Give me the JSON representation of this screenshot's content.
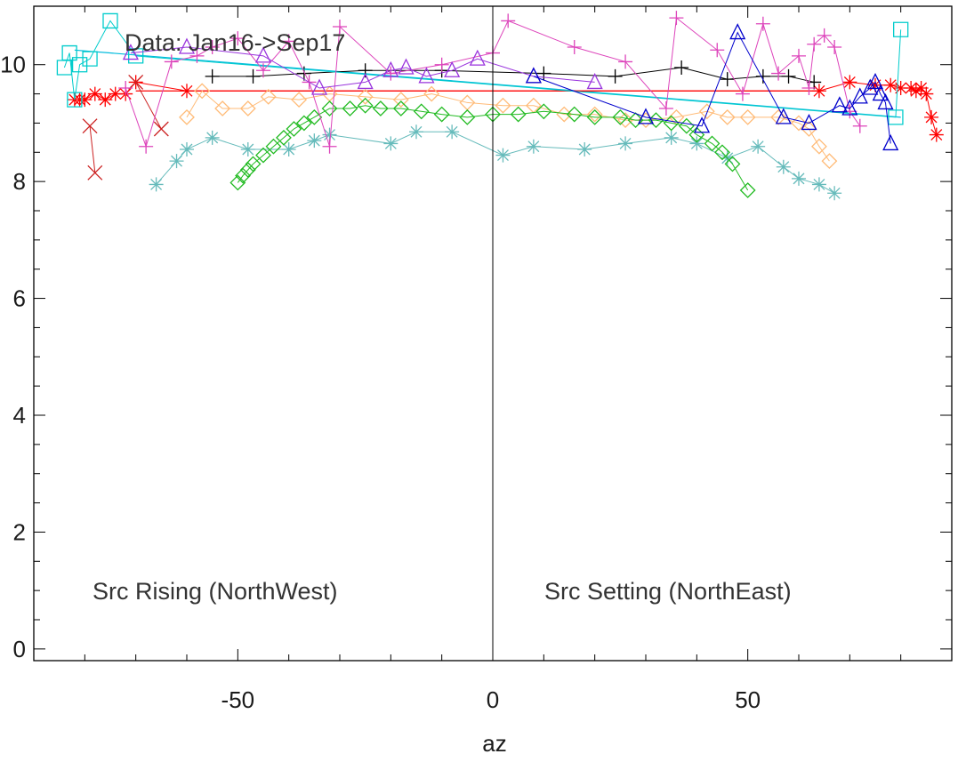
{
  "chart_data": {
    "type": "scatter",
    "title": "",
    "xlabel": "az",
    "ylabel": "",
    "xlim": [
      -90,
      90
    ],
    "ylim": [
      -0.2,
      11
    ],
    "xticks": [
      -50,
      0,
      50
    ],
    "yticks": [
      0,
      2,
      4,
      6,
      8,
      10
    ],
    "grid": false,
    "annotations": {
      "data_range": "Data: Jan16->Sep17",
      "left_region": "Src Rising (NorthWest)",
      "right_region": "Src Setting (NorthEast)"
    },
    "vline_x": 0,
    "series": [
      {
        "color": "#ff0000",
        "marker": "star",
        "points": [
          [
            -82,
            9.4
          ],
          [
            -81,
            9.4
          ],
          [
            -80,
            9.4
          ],
          [
            -78,
            9.5
          ],
          [
            -76,
            9.4
          ],
          [
            -74,
            9.5
          ],
          [
            -72,
            9.5
          ],
          [
            -70,
            9.7
          ],
          [
            -60,
            9.55
          ],
          [
            64,
            9.55
          ],
          [
            70,
            9.7
          ],
          [
            75,
            9.65
          ],
          [
            78,
            9.65
          ],
          [
            80,
            9.6
          ],
          [
            82,
            9.6
          ],
          [
            83,
            9.55
          ],
          [
            84,
            9.6
          ],
          [
            85,
            9.5
          ],
          [
            86,
            9.1
          ],
          [
            87,
            8.8
          ]
        ]
      },
      {
        "color": "#cc2222",
        "marker": "x",
        "points": [
          [
            -79,
            8.95
          ],
          [
            -78,
            8.15
          ]
        ]
      },
      {
        "color": "#cc2222",
        "marker": "x",
        "points": [
          [
            -70,
            9.7
          ],
          [
            -65,
            8.9
          ]
        ]
      },
      {
        "color": "#000000",
        "marker": "plus",
        "points": [
          [
            -55,
            9.8
          ],
          [
            -47,
            9.8
          ],
          [
            -37,
            9.85
          ],
          [
            -25,
            9.9
          ],
          [
            -10,
            9.9
          ],
          [
            10,
            9.85
          ],
          [
            24,
            9.8
          ],
          [
            37,
            9.95
          ],
          [
            46,
            9.75
          ],
          [
            53,
            9.8
          ],
          [
            58,
            9.8
          ],
          [
            63,
            9.7
          ]
        ]
      },
      {
        "color": "#00cccc",
        "marker": "square",
        "points": [
          [
            -84,
            9.95
          ],
          [
            -83,
            10.2
          ],
          [
            -82,
            9.4
          ],
          [
            -81,
            10.0
          ],
          [
            -79,
            10.1
          ],
          [
            -75,
            10.75
          ],
          [
            -70,
            10.15
          ],
          [
            79,
            9.1
          ],
          [
            80,
            10.6
          ]
        ]
      },
      {
        "color": "#66bbbb",
        "marker": "star",
        "points": [
          [
            -66,
            7.95
          ],
          [
            -62,
            8.35
          ],
          [
            -60,
            8.55
          ],
          [
            -55,
            8.75
          ],
          [
            -48,
            8.55
          ],
          [
            -40,
            8.55
          ],
          [
            -35,
            8.7
          ],
          [
            -32,
            8.8
          ],
          [
            -20,
            8.65
          ],
          [
            -15,
            8.85
          ],
          [
            -8,
            8.85
          ],
          [
            2,
            8.45
          ],
          [
            8,
            8.6
          ],
          [
            18,
            8.55
          ],
          [
            26,
            8.65
          ],
          [
            35,
            8.75
          ],
          [
            40,
            8.65
          ],
          [
            46,
            8.4
          ],
          [
            52,
            8.6
          ],
          [
            57,
            8.25
          ],
          [
            60,
            8.05
          ],
          [
            64,
            7.95
          ],
          [
            67,
            7.8
          ]
        ]
      },
      {
        "color": "#ffbb77",
        "marker": "diamond",
        "points": [
          [
            -60,
            9.1
          ],
          [
            -57,
            9.55
          ],
          [
            -53,
            9.25
          ],
          [
            -48,
            9.25
          ],
          [
            -44,
            9.45
          ],
          [
            -38,
            9.4
          ],
          [
            -32,
            9.5
          ],
          [
            -25,
            9.45
          ],
          [
            -18,
            9.4
          ],
          [
            -12,
            9.5
          ],
          [
            -5,
            9.35
          ],
          [
            2,
            9.3
          ],
          [
            8,
            9.3
          ],
          [
            14,
            9.15
          ],
          [
            20,
            9.15
          ],
          [
            26,
            9.05
          ],
          [
            30,
            9.05
          ],
          [
            36,
            9.1
          ],
          [
            42,
            9.2
          ],
          [
            46,
            9.1
          ],
          [
            50,
            9.1
          ],
          [
            56,
            9.1
          ],
          [
            60,
            9.0
          ],
          [
            62,
            8.9
          ],
          [
            64,
            8.6
          ],
          [
            66,
            8.35
          ]
        ]
      },
      {
        "color": "#22bb22",
        "marker": "diamond",
        "points": [
          [
            -50,
            7.98
          ],
          [
            -49,
            8.1
          ],
          [
            -48,
            8.2
          ],
          [
            -47,
            8.3
          ],
          [
            -45,
            8.45
          ],
          [
            -43,
            8.6
          ],
          [
            -41,
            8.75
          ],
          [
            -39,
            8.9
          ],
          [
            -37,
            9.0
          ],
          [
            -35,
            9.1
          ],
          [
            -32,
            9.25
          ],
          [
            -28,
            9.25
          ],
          [
            -25,
            9.3
          ],
          [
            -22,
            9.25
          ],
          [
            -18,
            9.25
          ],
          [
            -14,
            9.2
          ],
          [
            -10,
            9.15
          ],
          [
            -5,
            9.1
          ],
          [
            0,
            9.15
          ],
          [
            5,
            9.15
          ],
          [
            10,
            9.2
          ],
          [
            16,
            9.15
          ],
          [
            20,
            9.1
          ],
          [
            25,
            9.1
          ],
          [
            28,
            9.05
          ],
          [
            32,
            9.05
          ],
          [
            35,
            9.0
          ],
          [
            38,
            8.95
          ],
          [
            40,
            8.8
          ],
          [
            43,
            8.65
          ],
          [
            45,
            8.5
          ],
          [
            47,
            8.3
          ],
          [
            50,
            7.85
          ]
        ]
      },
      {
        "color": "#dd44bb",
        "marker": "plus",
        "points": [
          [
            -72,
            9.6
          ],
          [
            -68,
            8.6
          ],
          [
            -63,
            10.05
          ],
          [
            -58,
            10.15
          ],
          [
            -55,
            10.3
          ],
          [
            -50,
            10.45
          ],
          [
            -45,
            9.9
          ],
          [
            -40,
            10.4
          ],
          [
            -36,
            9.7
          ],
          [
            -32,
            8.6
          ],
          [
            -30,
            10.65
          ],
          [
            -20,
            9.85
          ],
          [
            -10,
            10.0
          ],
          [
            0,
            10.2
          ],
          [
            3,
            10.75
          ],
          [
            16,
            10.3
          ],
          [
            26,
            10.05
          ],
          [
            34,
            9.25
          ],
          [
            36,
            10.8
          ],
          [
            44,
            10.25
          ],
          [
            49,
            9.5
          ],
          [
            53,
            10.7
          ],
          [
            56,
            9.85
          ],
          [
            60,
            10.15
          ],
          [
            62,
            9.6
          ],
          [
            63,
            10.35
          ],
          [
            65,
            10.5
          ],
          [
            67,
            10.3
          ],
          [
            70,
            9.2
          ],
          [
            72,
            8.95
          ]
        ]
      },
      {
        "color": "#9933dd",
        "marker": "triangle",
        "points": [
          [
            -71,
            10.2
          ],
          [
            -60,
            10.3
          ],
          [
            -45,
            10.15
          ],
          [
            -34,
            9.6
          ],
          [
            -25,
            9.7
          ],
          [
            -20,
            9.9
          ],
          [
            -17,
            9.95
          ],
          [
            -13,
            9.8
          ],
          [
            -8,
            9.9
          ],
          [
            -3,
            10.1
          ],
          [
            8,
            9.8
          ],
          [
            20,
            9.7
          ]
        ]
      },
      {
        "color": "#0000cc",
        "marker": "triangle",
        "points": [
          [
            8,
            9.8
          ],
          [
            30,
            9.1
          ],
          [
            41,
            8.95
          ],
          [
            48,
            10.55
          ],
          [
            57,
            9.1
          ],
          [
            62,
            9.0
          ],
          [
            68,
            9.3
          ],
          [
            70,
            9.25
          ],
          [
            72,
            9.45
          ],
          [
            74,
            9.6
          ],
          [
            75,
            9.7
          ],
          [
            76,
            9.5
          ],
          [
            77,
            9.35
          ],
          [
            78,
            8.65
          ]
        ]
      }
    ],
    "fit_lines": [
      {
        "color": "#00bbdd",
        "points": [
          [
            -82,
            10.25
          ],
          [
            80,
            9.1
          ]
        ]
      },
      {
        "color": "#ff0000",
        "points": [
          [
            -70,
            9.55
          ],
          [
            64,
            9.55
          ]
        ]
      }
    ]
  }
}
